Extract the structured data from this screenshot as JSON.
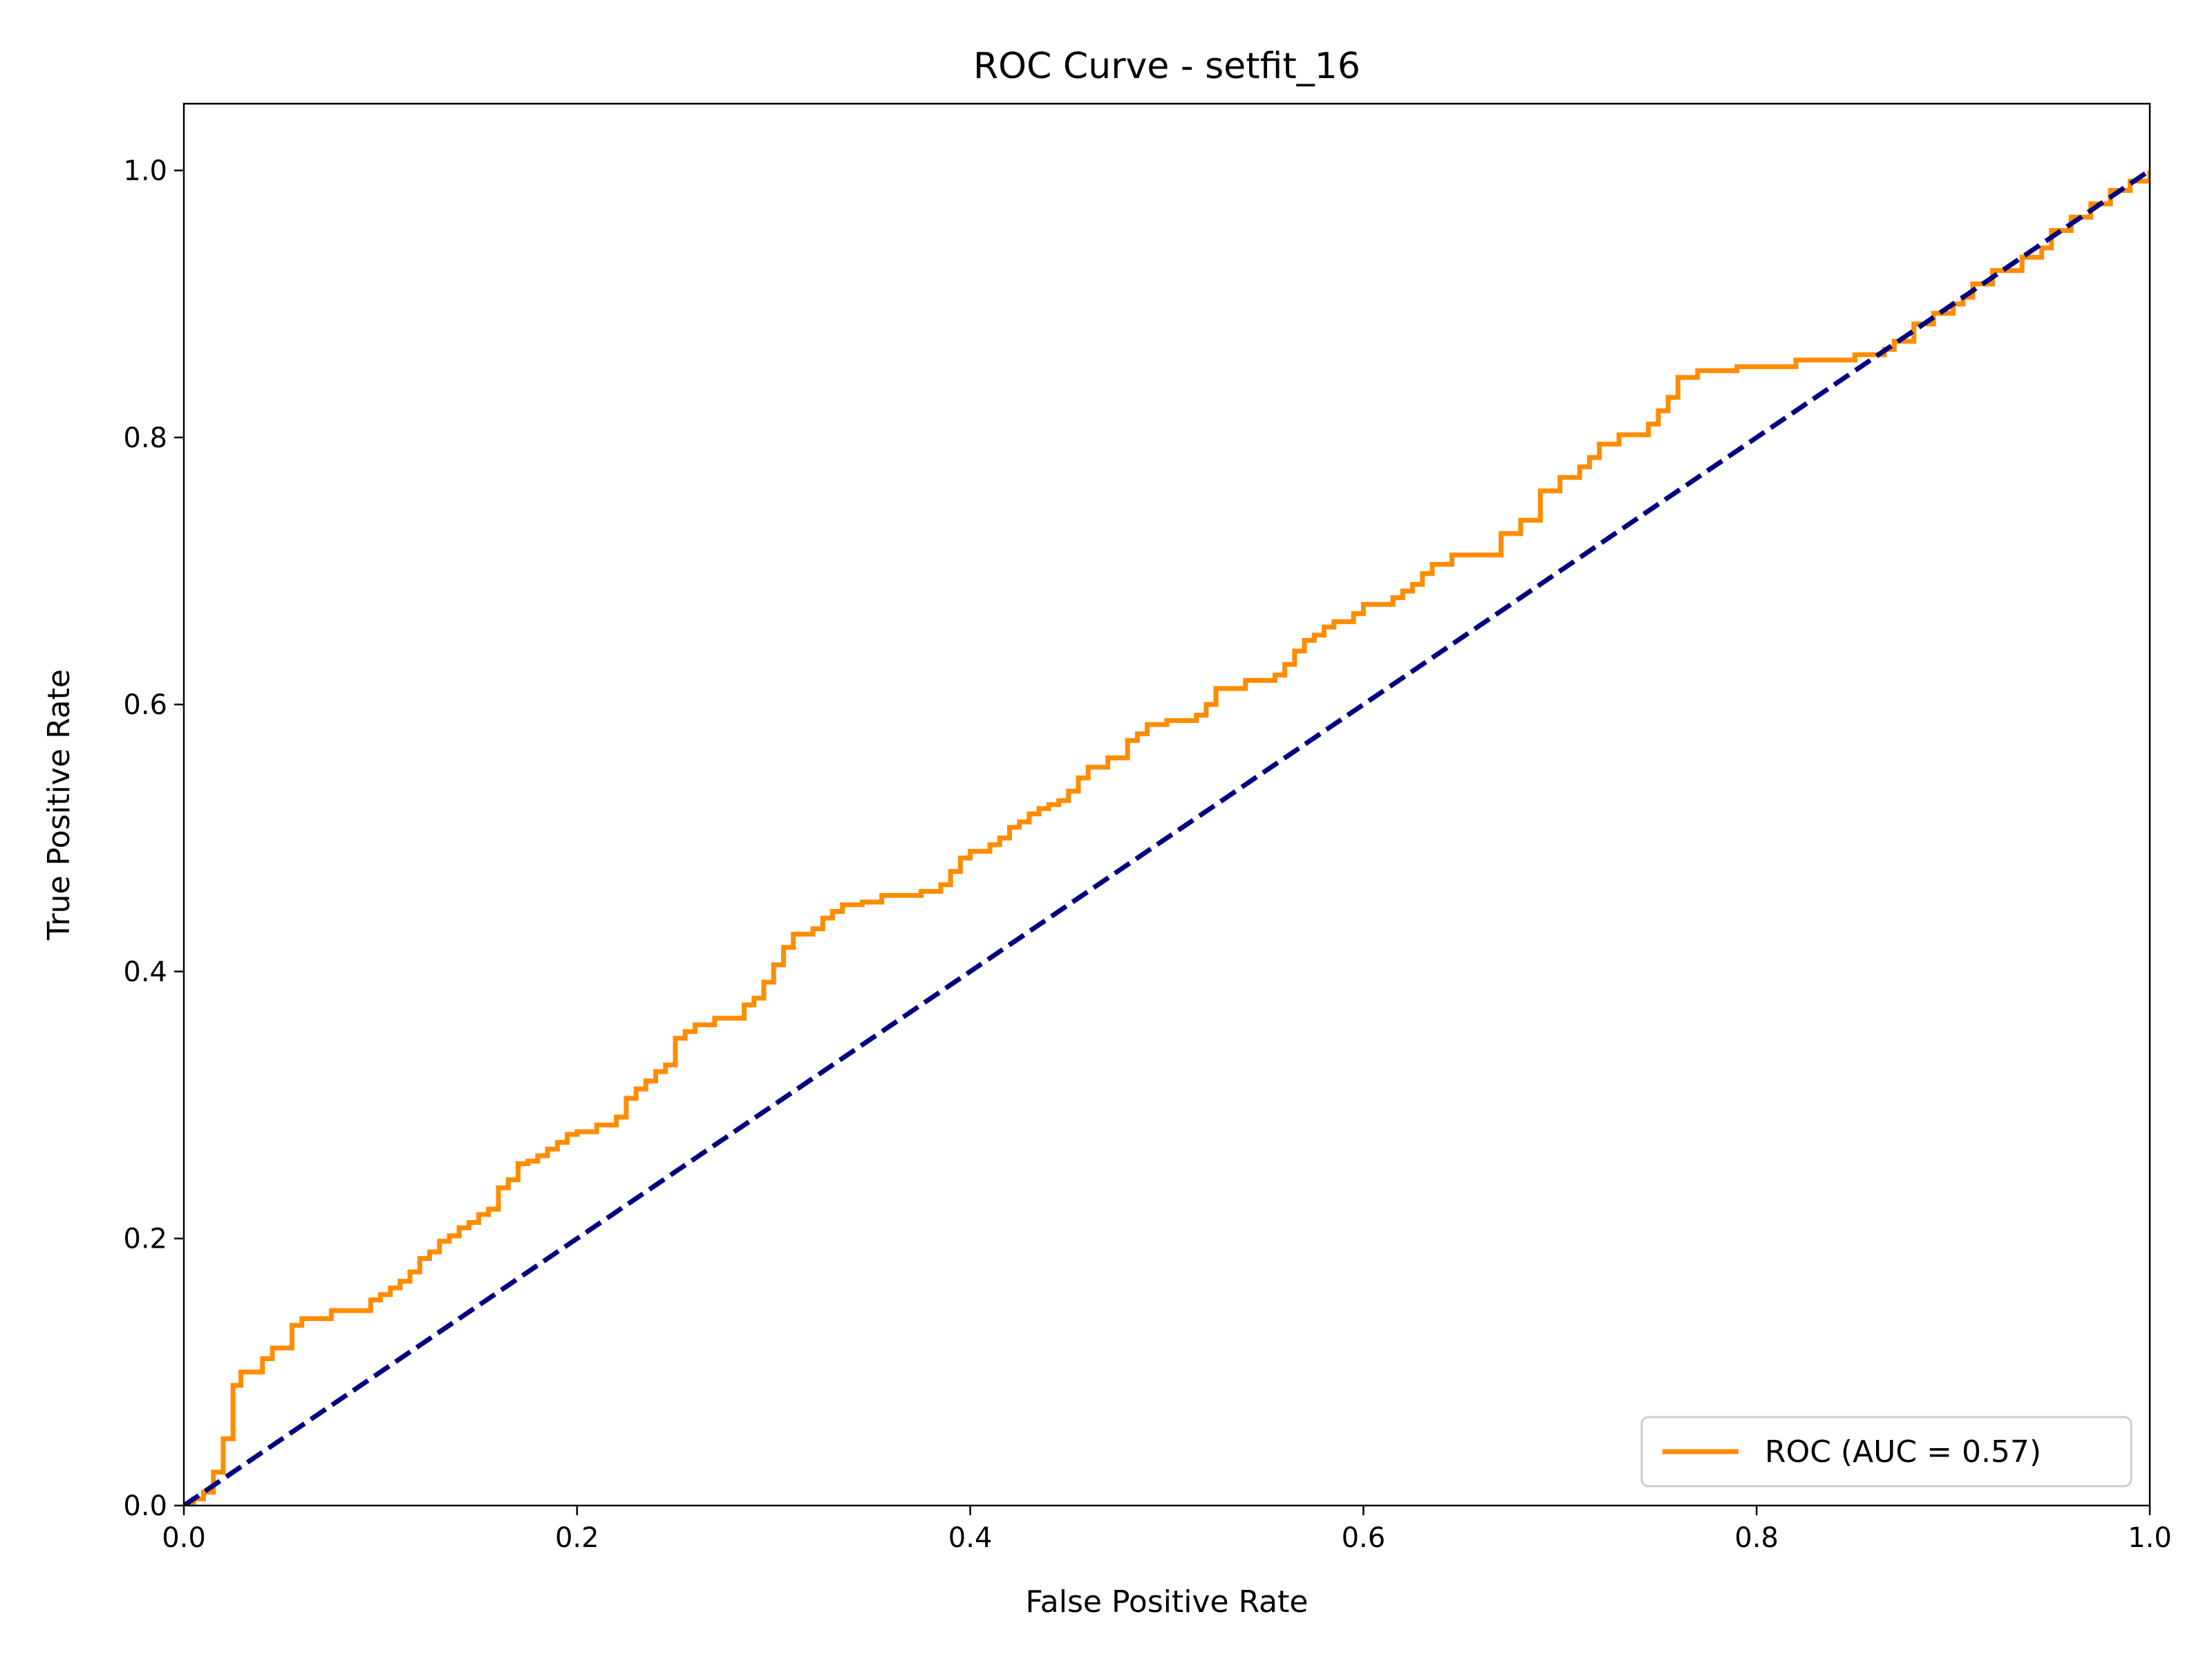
{
  "chart_data": {
    "type": "line",
    "title": "ROC Curve - setfit_16",
    "xlabel": "False Positive Rate",
    "ylabel": "True Positive Rate",
    "xlim": [
      0,
      1
    ],
    "ylim": [
      0,
      1.05
    ],
    "xticks": [
      "0.0",
      "0.2",
      "0.4",
      "0.6",
      "0.8",
      "1.0"
    ],
    "yticks": [
      "0.0",
      "0.2",
      "0.4",
      "0.6",
      "0.8",
      "1.0"
    ],
    "grid": false,
    "legend_position": "lower-right",
    "series": [
      {
        "name": "ROC (AUC = 0.57)",
        "color": "#ff8c00",
        "style": "solid",
        "step": true,
        "x": [
          0.0,
          0.005,
          0.01,
          0.015,
          0.02,
          0.025,
          0.029,
          0.033,
          0.04,
          0.045,
          0.055,
          0.06,
          0.075,
          0.095,
          0.1,
          0.105,
          0.11,
          0.115,
          0.12,
          0.125,
          0.13,
          0.135,
          0.14,
          0.145,
          0.15,
          0.155,
          0.16,
          0.165,
          0.17,
          0.175,
          0.18,
          0.185,
          0.19,
          0.195,
          0.2,
          0.21,
          0.22,
          0.225,
          0.23,
          0.235,
          0.24,
          0.245,
          0.25,
          0.255,
          0.26,
          0.27,
          0.285,
          0.29,
          0.295,
          0.3,
          0.305,
          0.31,
          0.32,
          0.325,
          0.33,
          0.335,
          0.345,
          0.355,
          0.375,
          0.385,
          0.39,
          0.395,
          0.4,
          0.41,
          0.415,
          0.42,
          0.425,
          0.43,
          0.435,
          0.44,
          0.445,
          0.45,
          0.455,
          0.46,
          0.47,
          0.48,
          0.485,
          0.49,
          0.5,
          0.515,
          0.52,
          0.525,
          0.54,
          0.555,
          0.56,
          0.565,
          0.57,
          0.575,
          0.58,
          0.585,
          0.595,
          0.6,
          0.615,
          0.62,
          0.625,
          0.63,
          0.635,
          0.645,
          0.67,
          0.68,
          0.69,
          0.7,
          0.71,
          0.715,
          0.72,
          0.73,
          0.745,
          0.75,
          0.755,
          0.76,
          0.77,
          0.79,
          0.82,
          0.85,
          0.865,
          0.87,
          0.88,
          0.89,
          0.9,
          0.905,
          0.91,
          0.92,
          0.935,
          0.945,
          0.95,
          0.96,
          0.97,
          0.98,
          0.99,
          1.0
        ],
        "y": [
          0.0,
          0.005,
          0.01,
          0.025,
          0.05,
          0.09,
          0.1,
          0.1,
          0.11,
          0.118,
          0.135,
          0.14,
          0.146,
          0.154,
          0.158,
          0.163,
          0.168,
          0.175,
          0.185,
          0.19,
          0.198,
          0.202,
          0.208,
          0.212,
          0.218,
          0.222,
          0.238,
          0.244,
          0.256,
          0.258,
          0.262,
          0.267,
          0.272,
          0.278,
          0.28,
          0.285,
          0.291,
          0.305,
          0.312,
          0.318,
          0.325,
          0.33,
          0.35,
          0.355,
          0.36,
          0.365,
          0.375,
          0.38,
          0.392,
          0.405,
          0.418,
          0.428,
          0.432,
          0.44,
          0.445,
          0.45,
          0.452,
          0.457,
          0.46,
          0.465,
          0.475,
          0.485,
          0.49,
          0.495,
          0.5,
          0.508,
          0.512,
          0.518,
          0.522,
          0.525,
          0.528,
          0.535,
          0.545,
          0.553,
          0.56,
          0.573,
          0.578,
          0.585,
          0.588,
          0.592,
          0.6,
          0.612,
          0.618,
          0.622,
          0.63,
          0.64,
          0.648,
          0.652,
          0.658,
          0.662,
          0.668,
          0.675,
          0.68,
          0.685,
          0.69,
          0.698,
          0.705,
          0.712,
          0.728,
          0.738,
          0.76,
          0.77,
          0.778,
          0.785,
          0.795,
          0.802,
          0.81,
          0.82,
          0.83,
          0.845,
          0.85,
          0.853,
          0.858,
          0.862,
          0.866,
          0.872,
          0.885,
          0.893,
          0.9,
          0.905,
          0.915,
          0.925,
          0.935,
          0.942,
          0.955,
          0.965,
          0.975,
          0.985,
          0.992,
          1.0
        ]
      },
      {
        "name": "",
        "color": "#000080",
        "style": "dashed",
        "step": false,
        "x": [
          0,
          1
        ],
        "y": [
          0,
          1
        ]
      }
    ],
    "legend": [
      {
        "label": "ROC (AUC = 0.57)",
        "color": "#ff8c00"
      }
    ]
  }
}
